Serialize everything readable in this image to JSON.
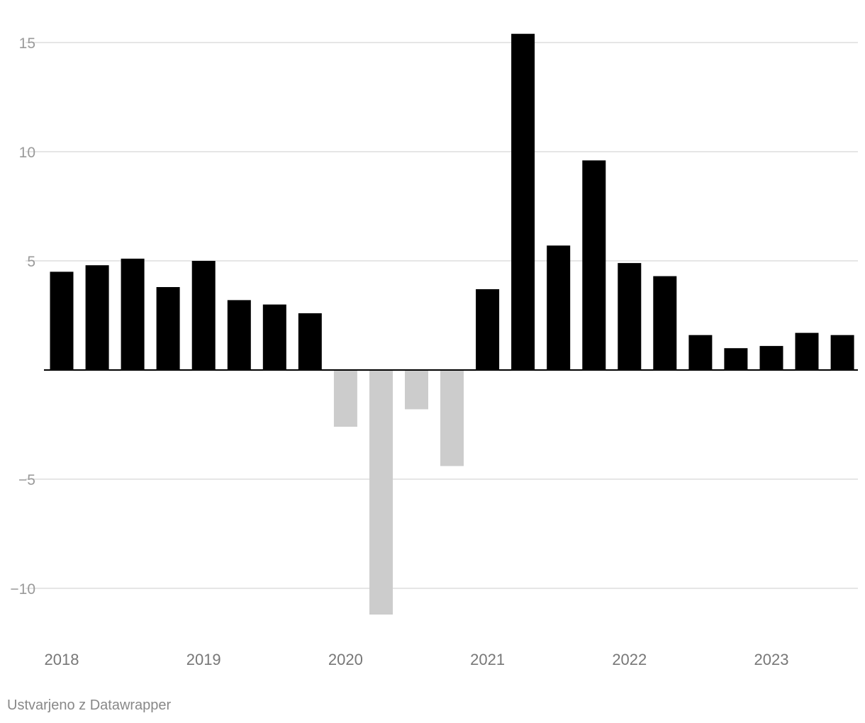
{
  "footer": {
    "credit": "Ustvarjeno z Datawrapper"
  },
  "colors": {
    "positive": "#000000",
    "negative": "#cccccc",
    "grid": "#dddddd",
    "tick_text": "#9a9a9a"
  },
  "chart_data": {
    "type": "bar",
    "title": "",
    "xlabel": "",
    "ylabel": "",
    "ylim": [
      -12,
      16
    ],
    "yticks": [
      15,
      10,
      5,
      -5,
      -10
    ],
    "ytick_labels": [
      "15",
      "10",
      "5",
      "−5",
      "−10"
    ],
    "grid": true,
    "x_tick_labels": [
      {
        "label": "2018",
        "at": "2018-Q1"
      },
      {
        "label": "2019",
        "at": "2019-Q1"
      },
      {
        "label": "2020",
        "at": "2020-Q1"
      },
      {
        "label": "2021",
        "at": "2021-Q1"
      },
      {
        "label": "2022",
        "at": "2022-Q1"
      },
      {
        "label": "2023",
        "at": "2023-Q1"
      }
    ],
    "categories": [
      "2018-Q1",
      "2018-Q2",
      "2018-Q3",
      "2018-Q4",
      "2019-Q1",
      "2019-Q2",
      "2019-Q3",
      "2019-Q4",
      "2020-Q1",
      "2020-Q2",
      "2020-Q3",
      "2020-Q4",
      "2021-Q1",
      "2021-Q2",
      "2021-Q3",
      "2021-Q4",
      "2022-Q1",
      "2022-Q2",
      "2022-Q3",
      "2022-Q4",
      "2023-Q1",
      "2023-Q2",
      "2023-Q3"
    ],
    "values": [
      4.5,
      4.8,
      5.1,
      3.8,
      5.0,
      3.2,
      3.0,
      2.6,
      -2.6,
      -11.2,
      -1.8,
      -4.4,
      3.7,
      15.4,
      5.7,
      9.6,
      4.9,
      4.3,
      1.6,
      1.0,
      1.1,
      1.7,
      1.6
    ]
  }
}
